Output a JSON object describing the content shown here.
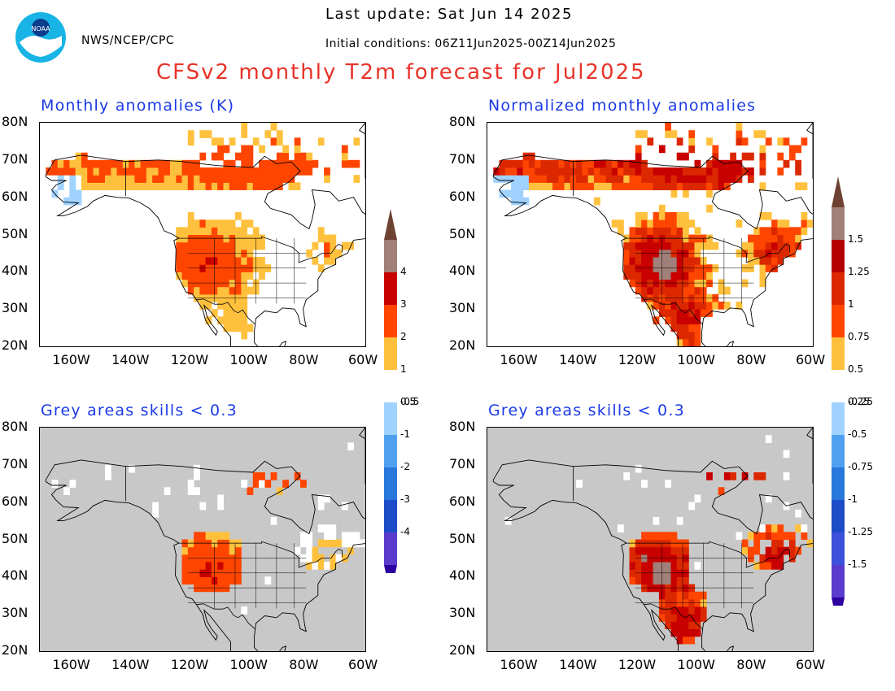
{
  "header": {
    "org": "NWS/NCEP/CPC",
    "last_update": "Last update: Sat Jun 14 2025",
    "initial_conditions": "Initial conditions: 06Z11Jun2025-00Z14Jun2025",
    "title": "CFSv2 monthly T2m forecast for Jul2025",
    "logo_text": "NOAA"
  },
  "panels": [
    {
      "title": "Monthly anomalies (K)",
      "masked": false,
      "scale": "k"
    },
    {
      "title": "Normalized monthly anomalies",
      "masked": false,
      "scale": "n"
    },
    {
      "title": "Grey areas skills < 0.3",
      "masked": true,
      "scale": "k"
    },
    {
      "title": "Grey areas skills < 0.3",
      "masked": true,
      "scale": "n"
    }
  ],
  "axes": {
    "lat_labels": [
      "80N",
      "70N",
      "60N",
      "50N",
      "40N",
      "30N",
      "20N"
    ],
    "lon_labels": [
      "160W",
      "140W",
      "120W",
      "100W",
      "80W",
      "60W"
    ],
    "lat_range": [
      20,
      80
    ],
    "lon_range": [
      -170,
      -60
    ]
  },
  "colorbars": [
    {
      "name": "anomaly-k",
      "labels_top": [
        "4",
        "3",
        "2",
        "1",
        "0.5"
      ],
      "labels_bottom": [
        "-0.5",
        "-1",
        "-2",
        "-3",
        "-4"
      ]
    },
    {
      "name": "normalized",
      "labels_top": [
        "1.5",
        "1.25",
        "1",
        "0.75",
        "0.5",
        "0.25"
      ],
      "labels_bottom": [
        "-0.25",
        "-0.5",
        "-0.75",
        "-1",
        "-1.25",
        "-1.5"
      ]
    }
  ],
  "colors": {
    "warm": [
      "#ffc13d",
      "#ff4500",
      "#c80000",
      "#a08078",
      "#6e4232"
    ],
    "cool": [
      "#a0d2ff",
      "#50a0f0",
      "#2878dc",
      "#1e4bc8",
      "#5a3ccd",
      "#2d00a0"
    ],
    "mask_grey": "#c8c8c8",
    "title_red": "#e8332a",
    "panel_title_blue": "#1a3ae6"
  }
}
